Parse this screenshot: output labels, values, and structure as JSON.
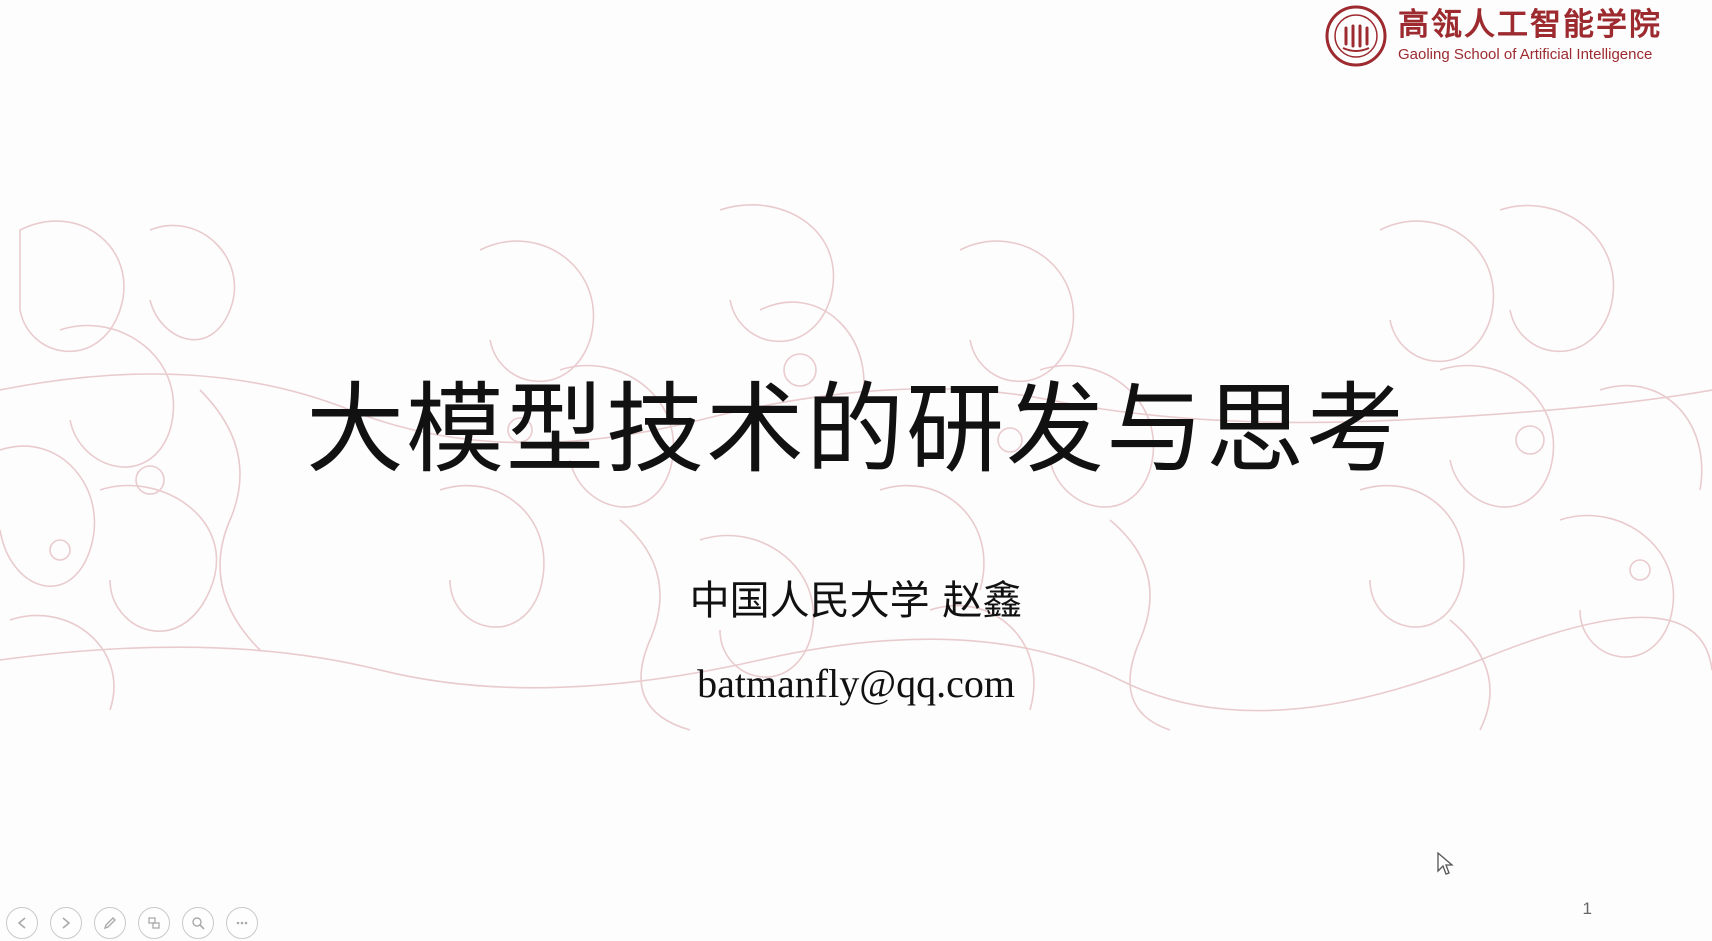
{
  "logo": {
    "name_cn": "高瓴人工智能学院",
    "name_en": "Gaoling School of Artificial Intelligence",
    "icon": "seal-icon",
    "color": "#9c2a2f"
  },
  "slide": {
    "title": "大模型技术的研发与思考",
    "author": "中国人民大学  赵鑫",
    "email": "batmanfly@qq.com",
    "page_number": "1"
  },
  "controls": [
    {
      "icon": "previous-icon"
    },
    {
      "icon": "next-icon"
    },
    {
      "icon": "pen-icon"
    },
    {
      "icon": "slides-icon"
    },
    {
      "icon": "zoom-icon"
    },
    {
      "icon": "more-icon"
    }
  ]
}
